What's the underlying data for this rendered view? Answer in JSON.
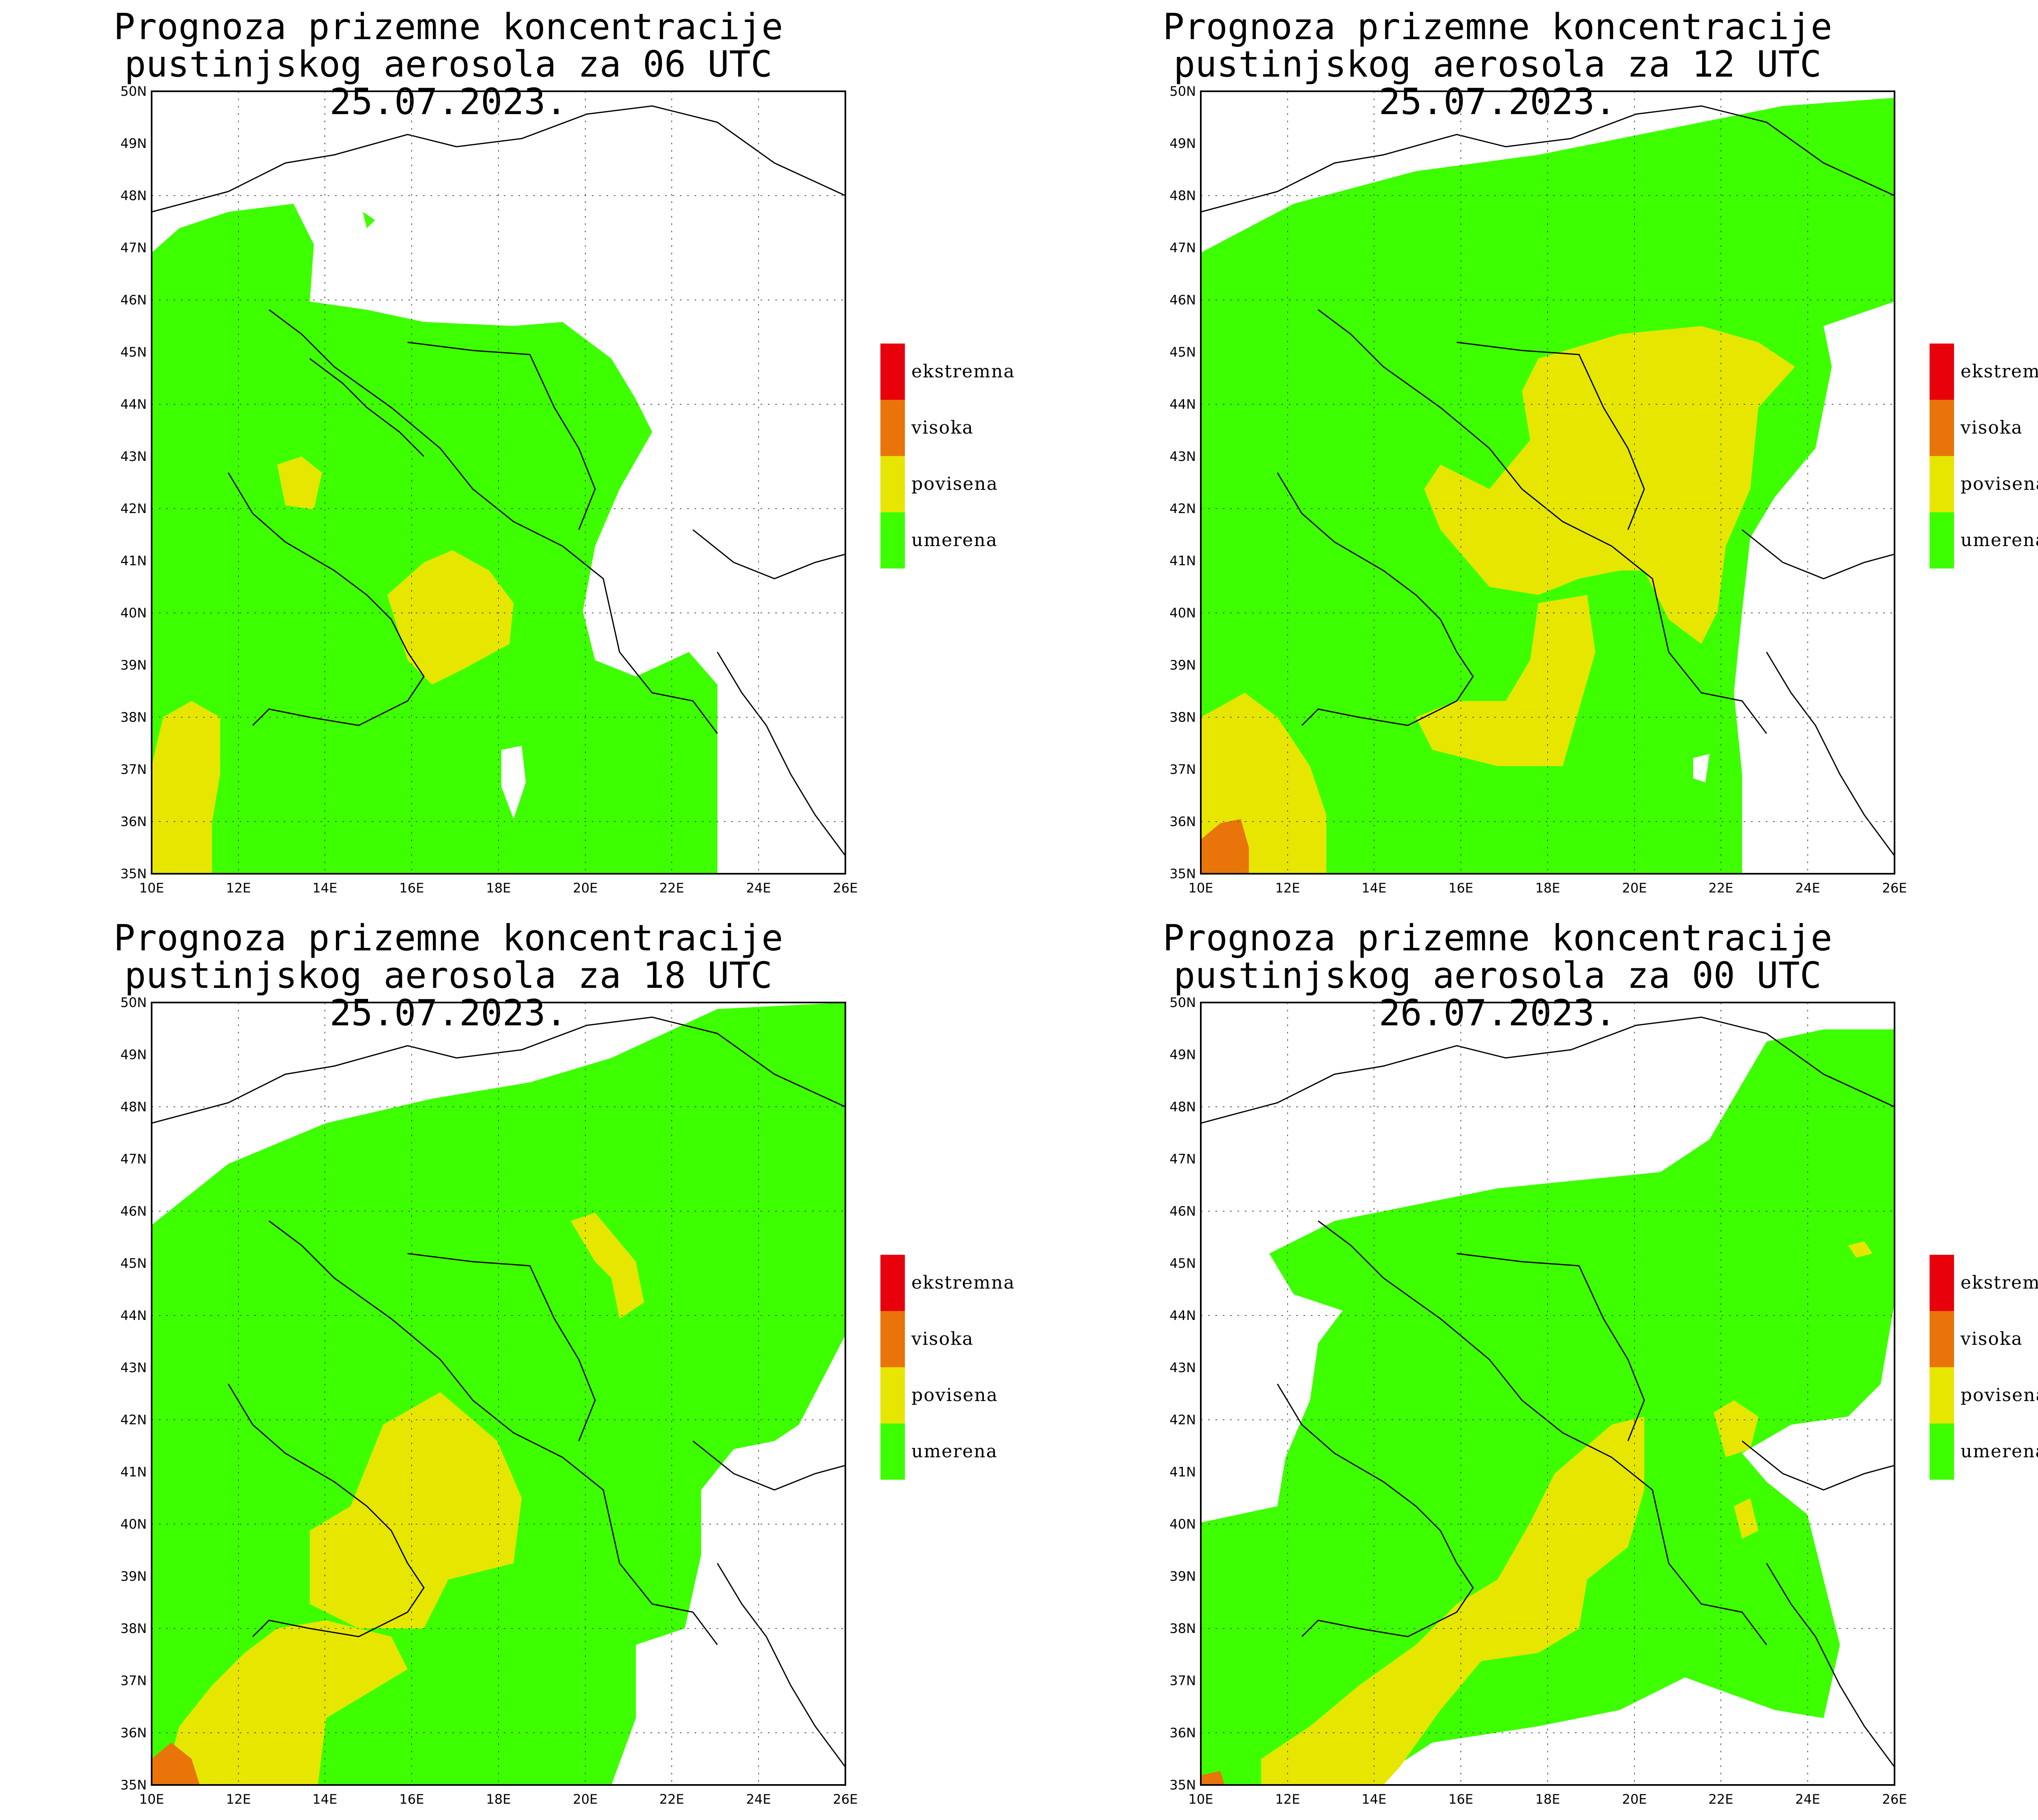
{
  "panels": [
    {
      "title_line1": "Prognoza prizemne koncentracije",
      "title_line2": "pustinjskog aerosola za 06 UTC 25.07.2023."
    },
    {
      "title_line1": "Prognoza prizemne koncentracije",
      "title_line2": "pustinjskog aerosola za 12 UTC 25.07.2023."
    },
    {
      "title_line1": "Prognoza prizemne koncentracije",
      "title_line2": "pustinjskog aerosola za 18 UTC 25.07.2023."
    },
    {
      "title_line1": "Prognoza prizemne koncentracije",
      "title_line2": "pustinjskog aerosola za 00 UTC 26.07.2023."
    }
  ],
  "axes": {
    "lon_labels": [
      "10E",
      "12E",
      "14E",
      "16E",
      "18E",
      "20E",
      "22E",
      "24E",
      "26E"
    ],
    "lat_labels": [
      "35N",
      "36N",
      "37N",
      "38N",
      "39N",
      "40N",
      "41N",
      "42N",
      "43N",
      "44N",
      "45N",
      "46N",
      "47N",
      "48N",
      "49N",
      "50N"
    ]
  },
  "legend": {
    "items": [
      {
        "label": "ekstremna",
        "color": "#e8000b"
      },
      {
        "label": "visoka",
        "color": "#e8740a"
      },
      {
        "label": "povisena",
        "color": "#e6e600"
      },
      {
        "label": "umerena",
        "color": "#3dff00"
      }
    ]
  }
}
